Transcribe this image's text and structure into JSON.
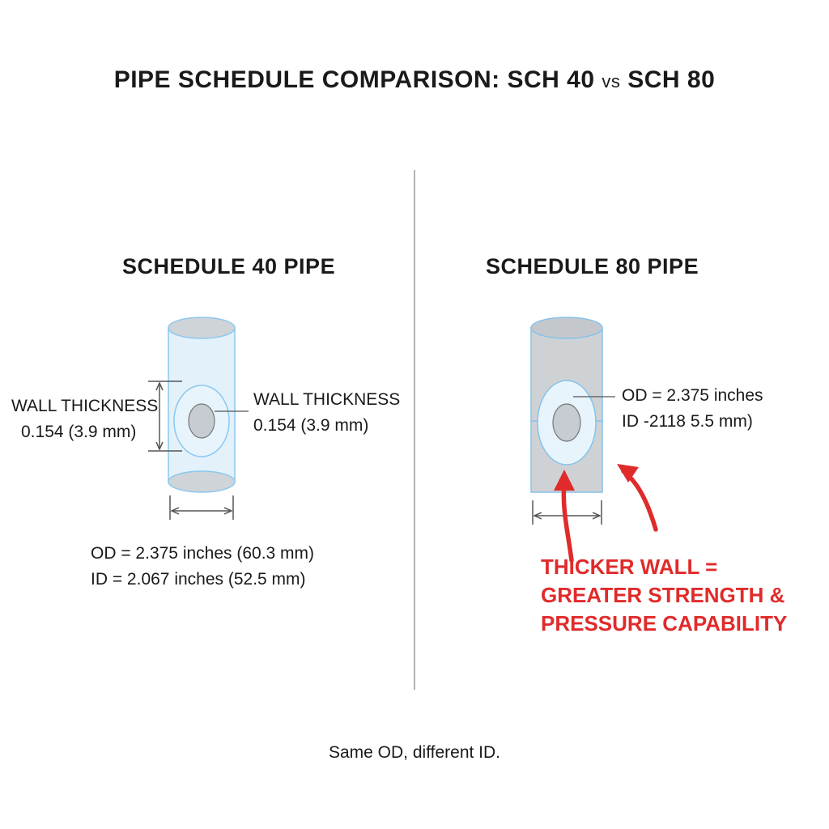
{
  "title": {
    "left": "PIPE SCHEDULE COMPARISON: SCH 40",
    "vs": "vs",
    "right": "SCH 80"
  },
  "sch40": {
    "heading": "SCHEDULE 40 PIPE",
    "wall_left": {
      "line1": "WALL THICKNESS",
      "line2": "0.154 (3.9 mm)"
    },
    "wall_right": {
      "line1": "WALL THICKNESS",
      "line2": "0.154  (3.9 mm)"
    },
    "od": "OD = 2.375 inches (60.3 mm)",
    "id": "ID = 2.067 inches (52.5 mm)"
  },
  "sch80": {
    "heading": "SCHEDULE 80 PIPE",
    "od": "OD = 2.375 inches",
    "id": "ID -2118 5.5 mm)",
    "callout": {
      "line1": "THICKER WALL =",
      "line2": "GREATER STRENGTH &",
      "line3": "PRESSURE CAPABILITY"
    }
  },
  "footnote": "Same OD, different ID.",
  "colors": {
    "sch40_pipe_fill": "#e3f1fb",
    "sch40_pipe_stroke": "#8cc8ee",
    "sch80_pipe_fill": "#cfd2d5",
    "sch80_pipe_stroke": "#86c2ea",
    "callout_red": "#e02b2b",
    "divider": "#9a9a9a"
  }
}
